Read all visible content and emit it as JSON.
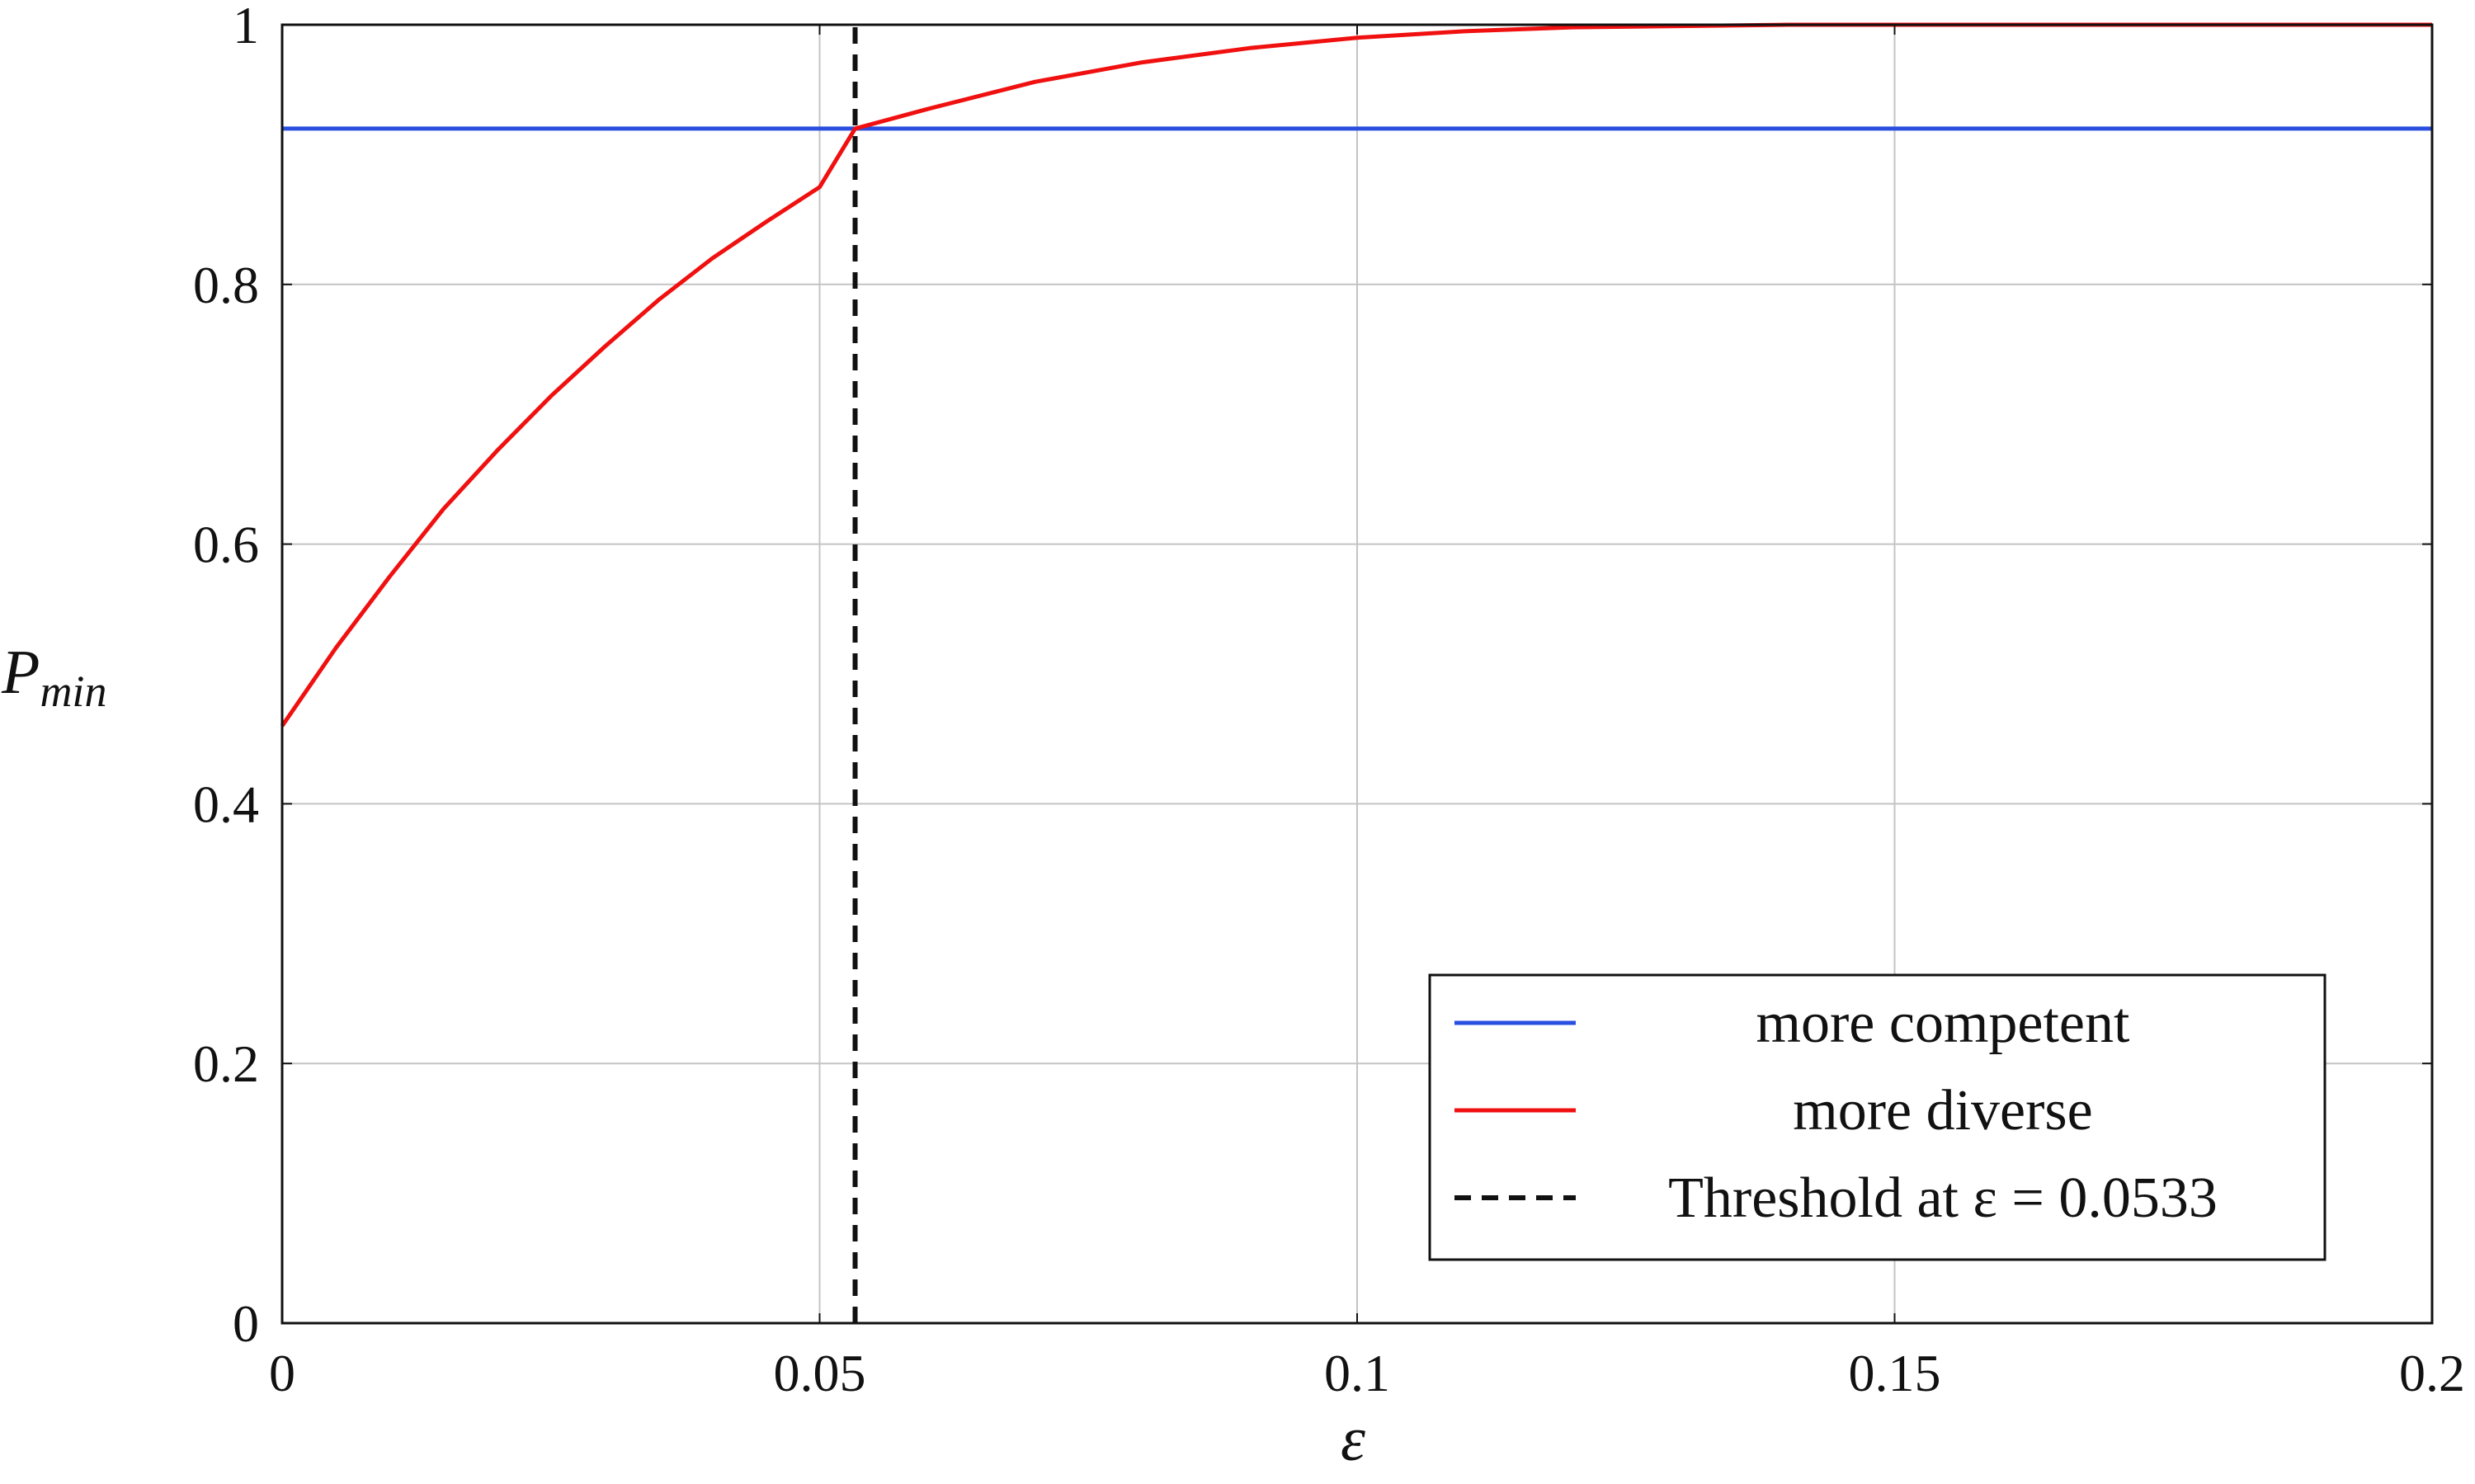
{
  "chart_data": {
    "type": "line",
    "title": "",
    "xlabel": "ε",
    "ylabel": {
      "main": "P",
      "sub": "min"
    },
    "xlim": [
      0,
      0.2
    ],
    "ylim": [
      0,
      1
    ],
    "grid": true,
    "x_ticks": [
      {
        "value": 0,
        "label": "0"
      },
      {
        "value": 0.05,
        "label": "0.05"
      },
      {
        "value": 0.1,
        "label": "0.1"
      },
      {
        "value": 0.15,
        "label": "0.15"
      },
      {
        "value": 0.2,
        "label": "0.2"
      }
    ],
    "y_ticks": [
      {
        "value": 0,
        "label": "0"
      },
      {
        "value": 0.2,
        "label": "0.2"
      },
      {
        "value": 0.4,
        "label": "0.4"
      },
      {
        "value": 0.6,
        "label": "0.6"
      },
      {
        "value": 0.8,
        "label": "0.8"
      },
      {
        "value": 1,
        "label": "1"
      }
    ],
    "legend_position": "bottom-right",
    "series": [
      {
        "name": "more competent",
        "color": "#2a4fe0",
        "style": "solid",
        "x": [
          0,
          0.2
        ],
        "y": [
          0.92,
          0.92
        ]
      },
      {
        "name": "more diverse",
        "color": "#f01010",
        "style": "solid",
        "x": [
          0,
          0.005,
          0.01,
          0.015,
          0.02,
          0.025,
          0.03,
          0.035,
          0.04,
          0.045,
          0.05,
          0.0533,
          0.06,
          0.07,
          0.08,
          0.09,
          0.1,
          0.11,
          0.12,
          0.13,
          0.14,
          0.15,
          0.16,
          0.18,
          0.2
        ],
        "y": [
          0.46,
          0.52,
          0.575,
          0.627,
          0.672,
          0.714,
          0.752,
          0.788,
          0.82,
          0.848,
          0.875,
          0.92,
          0.935,
          0.956,
          0.971,
          0.982,
          0.99,
          0.995,
          0.998,
          0.999,
          1.0,
          1.0,
          1.0,
          1.0,
          1.0
        ]
      },
      {
        "name": "Threshold at ε = 0.0533",
        "color": "#111111",
        "style": "dashed",
        "x": [
          0.0533,
          0.0533
        ],
        "y": [
          0,
          1
        ]
      }
    ]
  }
}
